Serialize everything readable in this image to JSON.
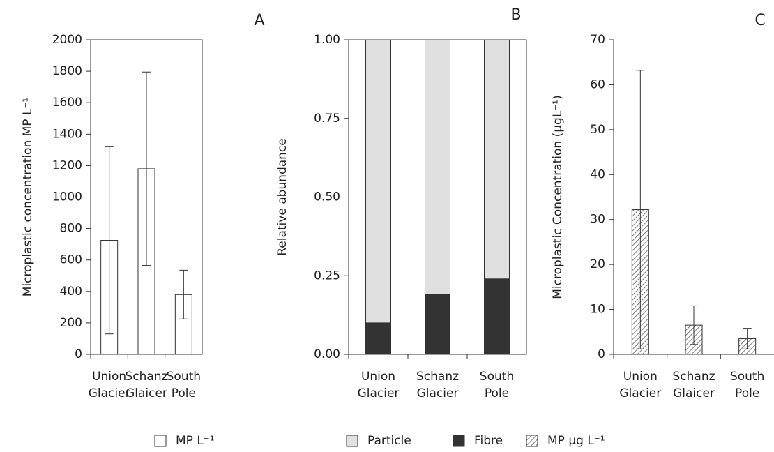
{
  "chart_data": [
    {
      "type": "bar",
      "panel": "A",
      "ylabel": "Microplastic concentration MP L⁻¹",
      "categories": [
        [
          "Union",
          "Glacier"
        ],
        [
          "Schanz",
          "Glaicer"
        ],
        [
          "South",
          "Pole"
        ]
      ],
      "series": [
        {
          "name": "MP L⁻¹",
          "color": "#ffffff",
          "values": [
            725,
            1180,
            380
          ],
          "errors": [
            595,
            615,
            155
          ]
        }
      ],
      "ylim": [
        0,
        2000
      ],
      "yticks": [
        0,
        200,
        400,
        600,
        800,
        1000,
        1200,
        1400,
        1600,
        1800,
        2000
      ]
    },
    {
      "type": "stacked_bar",
      "panel": "B",
      "ylabel": "Relative abundance",
      "categories": [
        [
          "Union",
          "Glacier"
        ],
        [
          "Schanz",
          "Glacier"
        ],
        [
          "South",
          "Pole"
        ]
      ],
      "series": [
        {
          "name": "Particle",
          "color": "#e0e0e0",
          "values": [
            0.9,
            0.81,
            0.76
          ]
        },
        {
          "name": "Fibre",
          "color": "#333333",
          "values": [
            0.1,
            0.19,
            0.24
          ]
        }
      ],
      "ylim": [
        0,
        1
      ],
      "yticks": [
        {
          "value": 0,
          "label": "0.00"
        },
        {
          "value": 0.25,
          "label": "0.25"
        },
        {
          "value": 0.5,
          "label": "0.50"
        },
        {
          "value": 0.75,
          "label": "0.75"
        },
        {
          "value": 1,
          "label": "1.00"
        }
      ]
    },
    {
      "type": "bar",
      "panel": "C",
      "ylabel": "Microplastic Concentration (µgL⁻¹)",
      "categories": [
        [
          "Union",
          "Glacier"
        ],
        [
          "Schanz",
          "Glaicer"
        ],
        [
          "South",
          "Pole"
        ]
      ],
      "series": [
        {
          "name": "MP µg L⁻¹",
          "color": "hatch",
          "values": [
            32.2,
            6.5,
            3.5
          ],
          "errors": [
            31,
            4.3,
            2.3
          ]
        }
      ],
      "ylim": [
        0,
        70
      ],
      "yticks": [
        0,
        10,
        20,
        30,
        40,
        50,
        60,
        70
      ]
    }
  ]
}
